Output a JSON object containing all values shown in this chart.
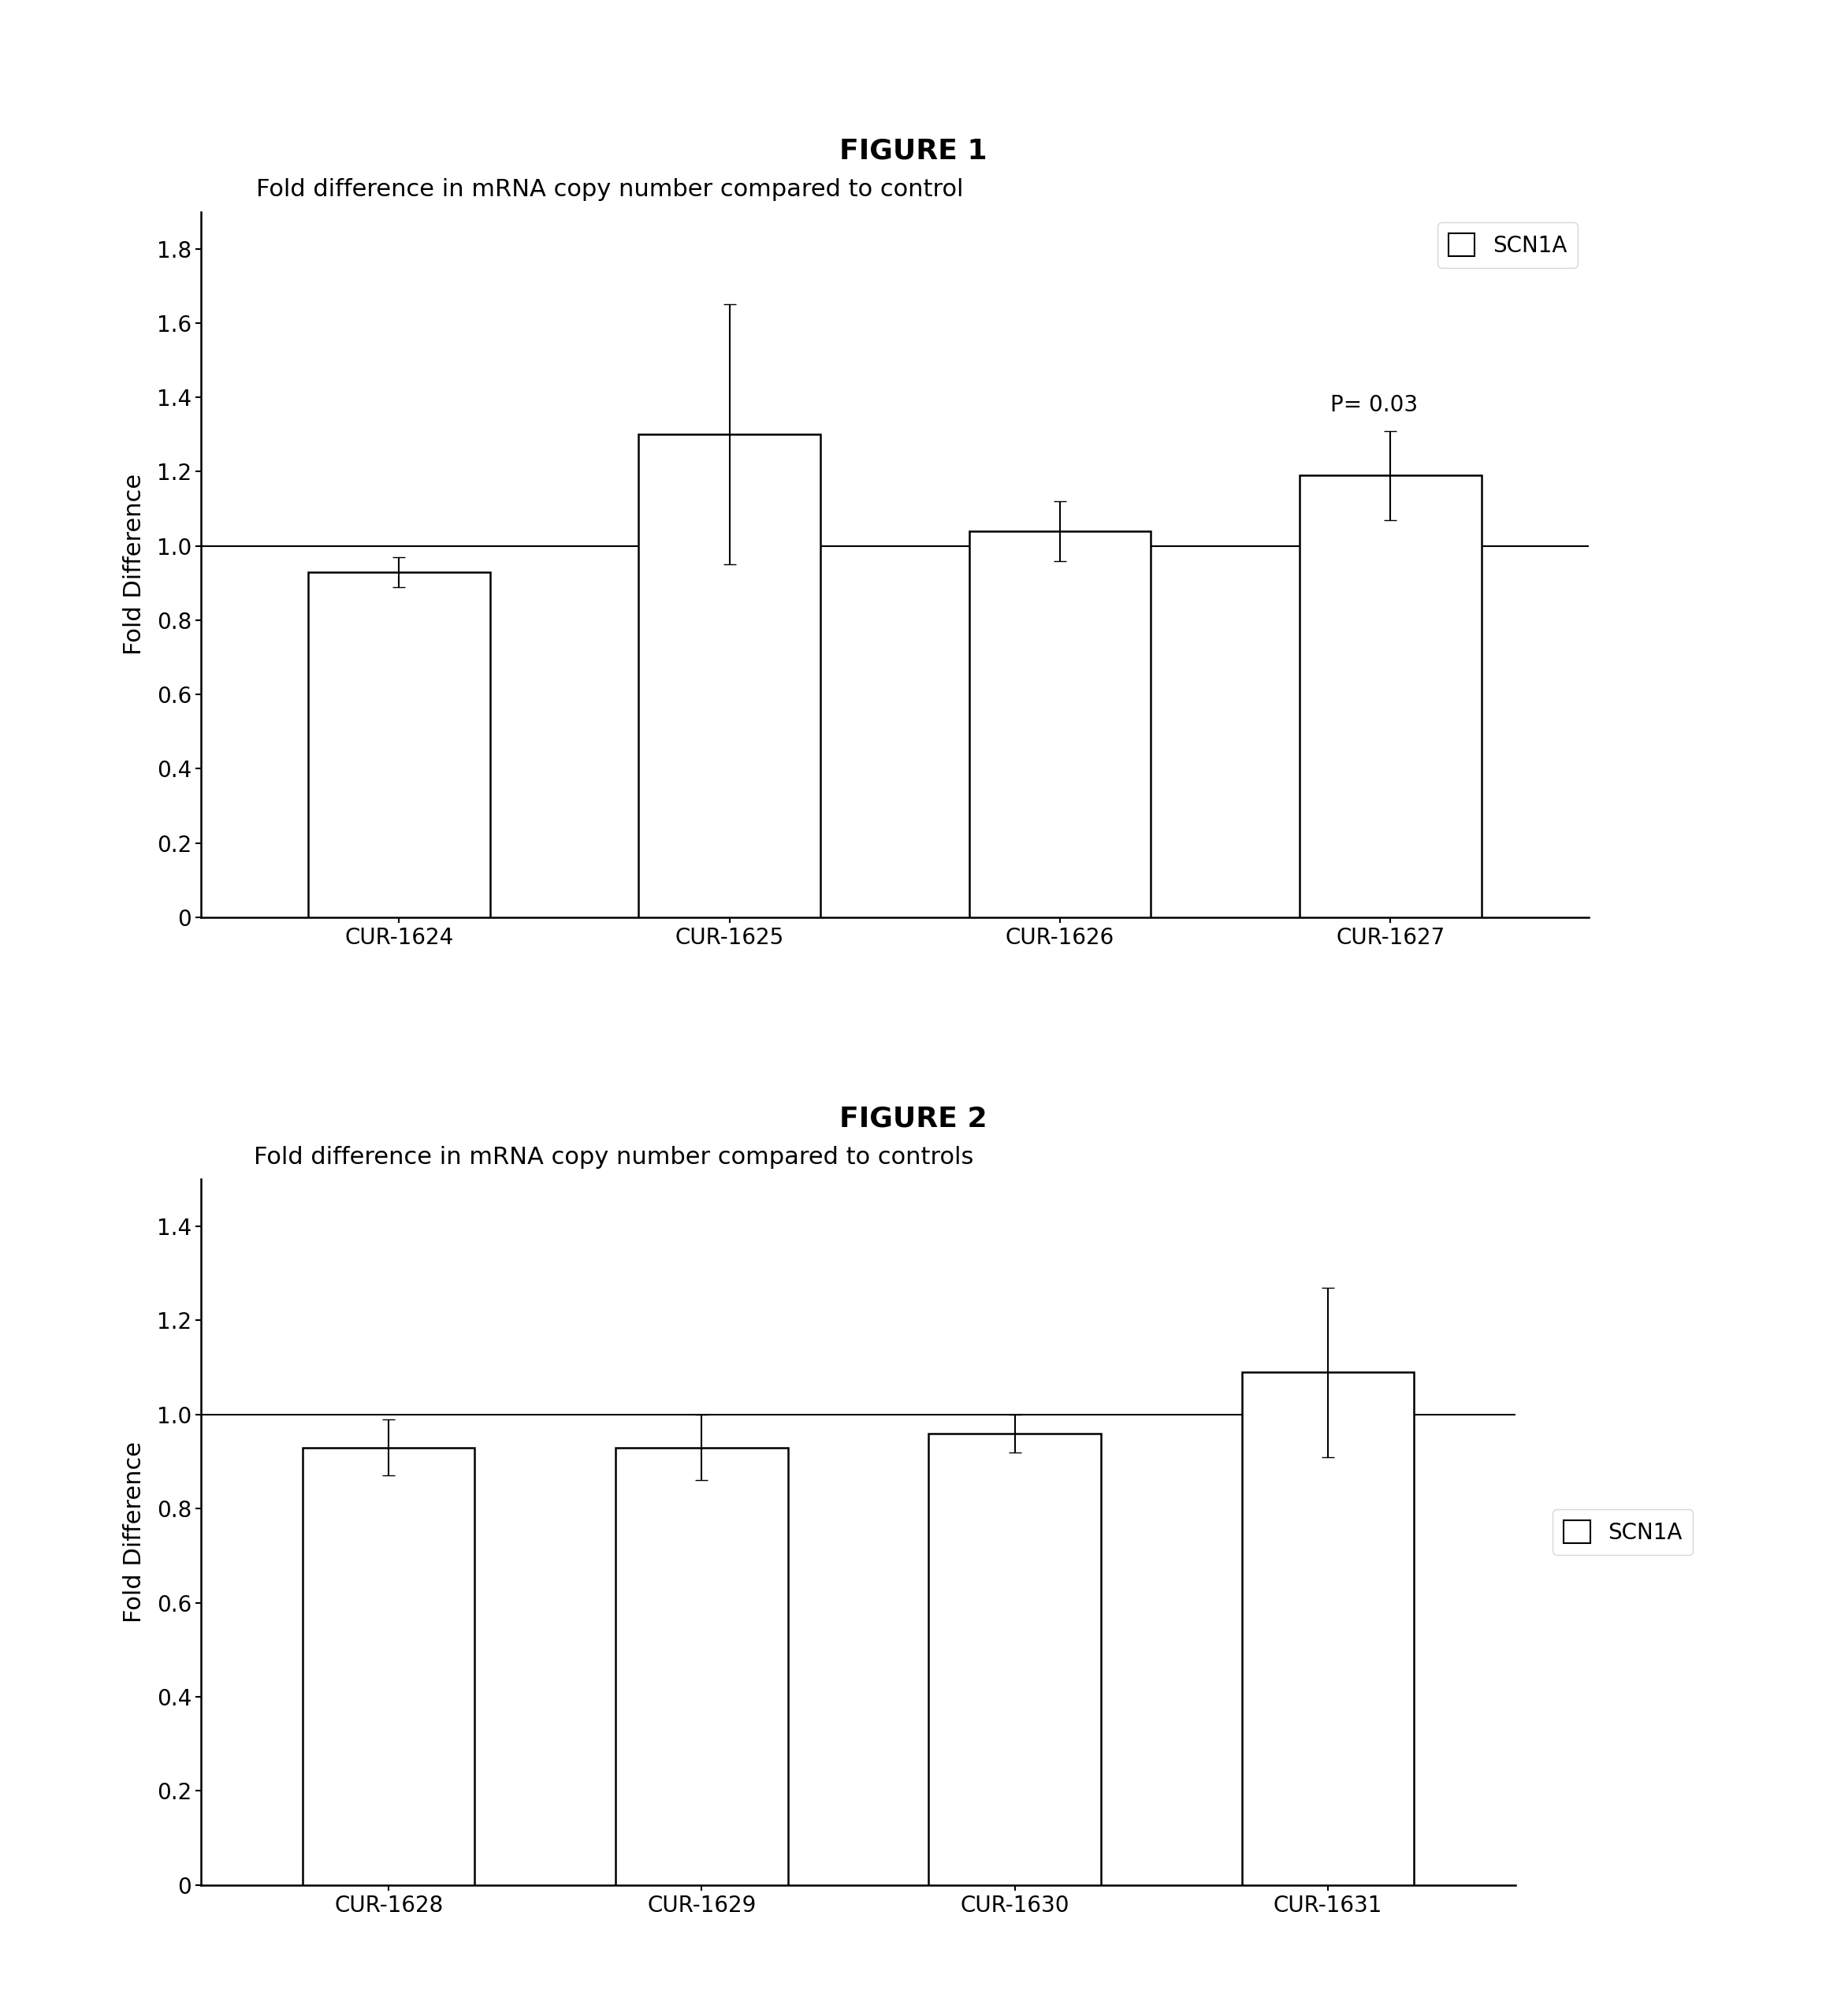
{
  "fig1_title": "FIGURE 1",
  "fig2_title": "FIGURE 2",
  "fig1_chart_title": "Fold difference in mRNA copy number compared to control",
  "fig2_chart_title": "Fold difference in mRNA copy number compared to controls",
  "fig1_categories": [
    "CUR-1624",
    "CUR-1625",
    "CUR-1626",
    "CUR-1627"
  ],
  "fig1_values": [
    0.93,
    1.3,
    1.04,
    1.19
  ],
  "fig1_errors": [
    0.04,
    0.35,
    0.08,
    0.12
  ],
  "fig1_ylim": [
    0,
    1.9
  ],
  "fig1_yticks": [
    0,
    0.2,
    0.4,
    0.6,
    0.8,
    1.0,
    1.2,
    1.4,
    1.6,
    1.8
  ],
  "fig1_annotation": "P= 0.03",
  "fig1_annotation_bar_index": 3,
  "fig2_categories": [
    "CUR-1628",
    "CUR-1629",
    "CUR-1630",
    "CUR-1631"
  ],
  "fig2_values": [
    0.93,
    0.93,
    0.96,
    1.09
  ],
  "fig2_errors": [
    0.06,
    0.07,
    0.04,
    0.18
  ],
  "fig2_ylim": [
    0,
    1.5
  ],
  "fig2_yticks": [
    0,
    0.2,
    0.4,
    0.6,
    0.8,
    1.0,
    1.2,
    1.4
  ],
  "bar_color": "#ffffff",
  "bar_edgecolor": "#000000",
  "bar_width": 0.55,
  "hline_y": 1.0,
  "hline_color": "#000000",
  "legend_label": "SCN1A",
  "ylabel": "Fold Difference",
  "background_color": "#ffffff",
  "fig_title_fontsize": 26,
  "chart_title_fontsize": 22,
  "tick_fontsize": 20,
  "label_fontsize": 22,
  "legend_fontsize": 20,
  "annotation_fontsize": 20
}
